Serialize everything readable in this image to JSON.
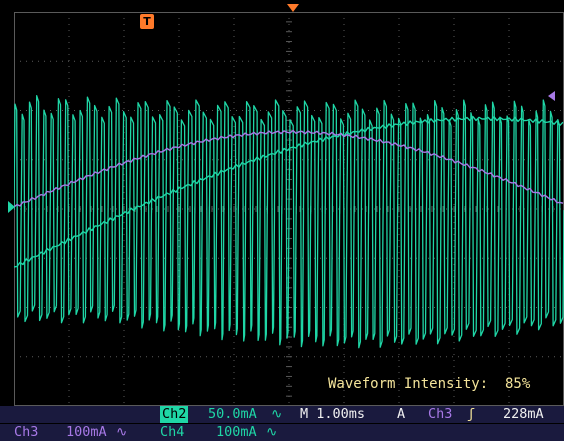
{
  "scope": {
    "colors": {
      "ch2": "#1fd6a6",
      "ch3": "#a779e6",
      "ch4": "#1fd6a6",
      "marker": "#ff7a2a",
      "grid": "#5a5a5a",
      "readout_text": "#f4e49a",
      "status_bg": "#1a1a3e"
    },
    "markers": {
      "trigger_marker_label": "T",
      "trigger_position_icon": "triangle-down-icon",
      "ch2_ground_icon": "triangle-right-icon",
      "trigger_level_icon": "triangle-left-icon"
    },
    "intensity_readout": "Waveform Intensity:  85%",
    "status": {
      "ch2_label": "Ch2",
      "ch2_scale": "50.0mA",
      "coupling_symbol": "∿",
      "timebase": "M 1.00ms",
      "trigger_mode": "A",
      "trigger_source": "Ch3",
      "trigger_edge": "ʃ",
      "trigger_level": "228mA",
      "ch3_label": "Ch3",
      "ch3_scale": "100mA",
      "ch4_label": "Ch4",
      "ch4_scale": "100mA"
    }
  }
}
